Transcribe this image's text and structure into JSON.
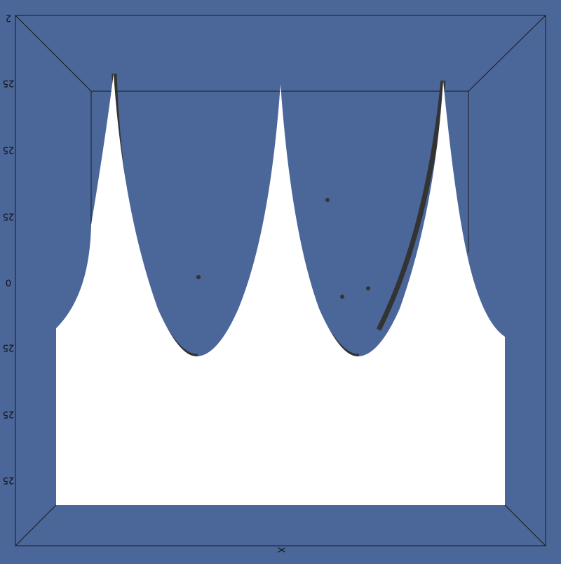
{
  "axes": {
    "z_labels": [
      "2",
      "25",
      "25",
      "25",
      "0",
      "25",
      "25",
      "25"
    ],
    "x_label": "X"
  }
}
